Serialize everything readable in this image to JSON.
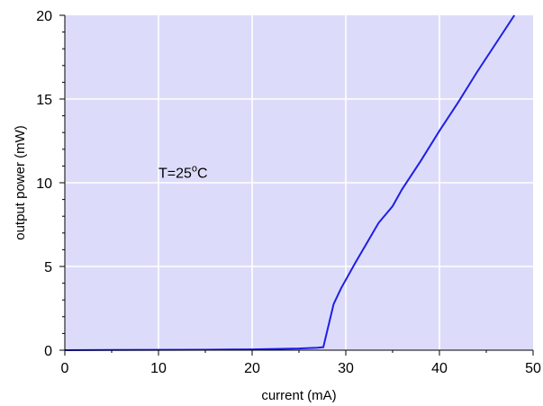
{
  "chart_data": {
    "type": "line",
    "xlabel": "current (mA)",
    "ylabel": "output power (mW)",
    "xlim": [
      0,
      50
    ],
    "ylim": [
      0,
      20
    ],
    "x_ticks": [
      "0",
      "10",
      "20",
      "30",
      "40",
      "50"
    ],
    "y_ticks": [
      "0",
      "5",
      "10",
      "15",
      "20"
    ],
    "grid": true,
    "background_color": "#dcdcfa",
    "line_color": "#1f1fe6",
    "annotation": {
      "text_main": "T=25",
      "text_sup": "o",
      "text_unit": "C",
      "x": 10,
      "y": 10.3
    },
    "series": [
      {
        "x": [
          0,
          5,
          10,
          15,
          20,
          25,
          27,
          27.6,
          28.7,
          29.5,
          31,
          33.5,
          35,
          36,
          38,
          40,
          42,
          44,
          46,
          48
        ],
        "y": [
          0,
          0.01,
          0.02,
          0.03,
          0.05,
          0.1,
          0.15,
          0.18,
          2.75,
          3.7,
          5.2,
          7.6,
          8.6,
          9.6,
          11.3,
          13.1,
          14.8,
          16.6,
          18.3,
          20
        ]
      }
    ]
  }
}
